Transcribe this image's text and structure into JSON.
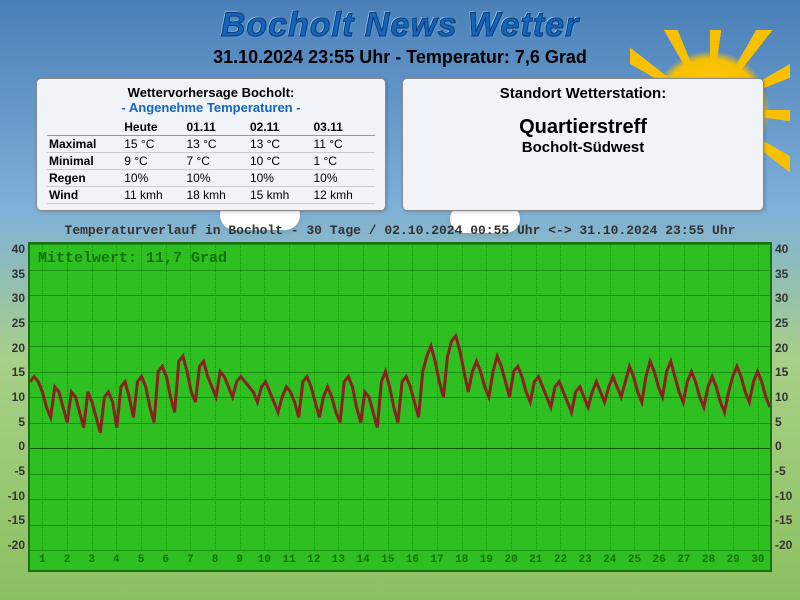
{
  "title": "Bocholt News Wetter",
  "subtitle": "31.10.2024 23:55 Uhr - Temperatur: 7,6 Grad",
  "forecast": {
    "heading": "Wettervorhersage Bocholt:",
    "subheading": "- Angenehme Temperaturen -",
    "columns": [
      "",
      "Heute",
      "01.11",
      "02.11",
      "03.11"
    ],
    "rows": [
      [
        "Maximal",
        "15 °C",
        "13 °C",
        "13 °C",
        "11 °C"
      ],
      [
        "Minimal",
        "9 °C",
        "7 °C",
        "10 °C",
        "1 °C"
      ],
      [
        "Regen",
        "10%",
        "10%",
        "10%",
        "10%"
      ],
      [
        "Wind",
        "11 kmh",
        "18 kmh",
        "15 kmh",
        "12 kmh"
      ]
    ]
  },
  "station": {
    "heading": "Standort Wetterstation:",
    "name": "Quartierstreff",
    "location": "Bocholt-Südwest"
  },
  "chart": {
    "title": "Temperaturverlauf in Bocholt - 30 Tage / 02.10.2024 00:55 Uhr <-> 31.10.2024 23:55 Uhr",
    "mean_label": "Mittelwert: 11,7 Grad",
    "type": "line",
    "ymin": -20,
    "ymax": 40,
    "ytick_step": 5,
    "yticks": [
      40,
      35,
      30,
      25,
      20,
      15,
      10,
      5,
      0,
      -5,
      -10,
      -15,
      -20
    ],
    "xticks": [
      1,
      2,
      3,
      4,
      5,
      6,
      7,
      8,
      9,
      10,
      11,
      12,
      13,
      14,
      15,
      16,
      17,
      18,
      19,
      20,
      21,
      22,
      23,
      24,
      25,
      26,
      27,
      28,
      29,
      30
    ],
    "line_color": "#8b2020",
    "background_color": "#2ec020",
    "grid_color": "#1a9014",
    "values": [
      13,
      14,
      13,
      11,
      8,
      6,
      12,
      11,
      8,
      5,
      11,
      10,
      7,
      4,
      11,
      9,
      6,
      3,
      10,
      11,
      9,
      4,
      12,
      13,
      10,
      6,
      13,
      14,
      12,
      8,
      5,
      15,
      16,
      14,
      10,
      7,
      17,
      18,
      15,
      11,
      9,
      16,
      17,
      14,
      12,
      10,
      15,
      14,
      12,
      10,
      13,
      14,
      13,
      12,
      11,
      9,
      12,
      13,
      11,
      9,
      7,
      10,
      12,
      11,
      9,
      6,
      13,
      14,
      12,
      9,
      6,
      10,
      12,
      10,
      7,
      5,
      13,
      14,
      12,
      8,
      5,
      11,
      10,
      7,
      4,
      13,
      15,
      12,
      8,
      5,
      13,
      14,
      12,
      9,
      6,
      15,
      18,
      20,
      17,
      13,
      10,
      18,
      21,
      22,
      19,
      15,
      11,
      15,
      17,
      15,
      12,
      10,
      15,
      18,
      16,
      13,
      10,
      15,
      16,
      14,
      11,
      9,
      13,
      14,
      12,
      10,
      8,
      12,
      13,
      11,
      9,
      7,
      11,
      12,
      10,
      8,
      11,
      13,
      11,
      9,
      12,
      14,
      12,
      10,
      13,
      16,
      14,
      11,
      9,
      14,
      17,
      15,
      12,
      10,
      15,
      17,
      14,
      11,
      9,
      13,
      15,
      13,
      10,
      8,
      12,
      14,
      12,
      9,
      7,
      11,
      14,
      16,
      14,
      11,
      9,
      13,
      15,
      13,
      10,
      8
    ]
  }
}
